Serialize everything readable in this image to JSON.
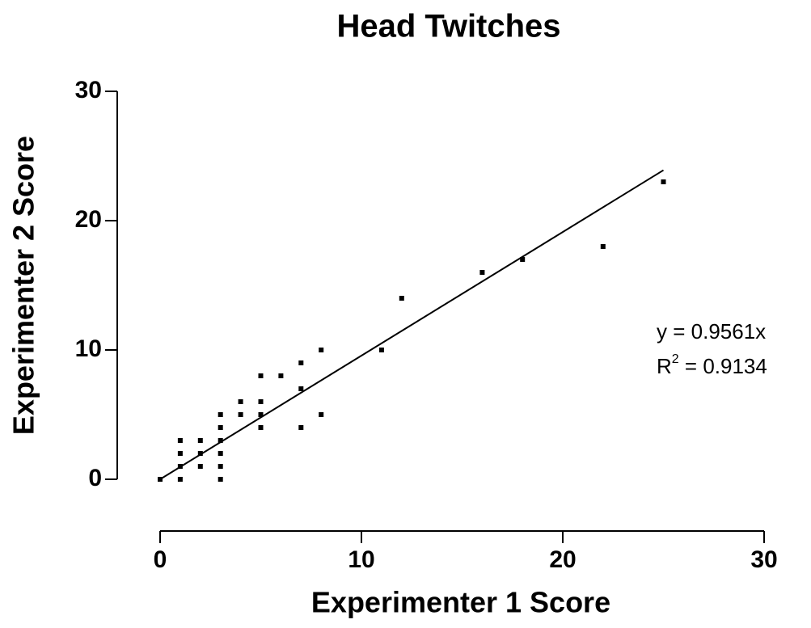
{
  "chart_data": {
    "type": "scatter",
    "title": "Head Twitches",
    "x_label": "Experimenter 1 Score",
    "y_label": "Experimenter 2 Score",
    "color": "#000000",
    "x": [
      0,
      1,
      1,
      1,
      1,
      2,
      2,
      2,
      3,
      3,
      3,
      3,
      3,
      3,
      4,
      4,
      5,
      5,
      5,
      5,
      6,
      7,
      7,
      7,
      8,
      8,
      11,
      12,
      16,
      18,
      22,
      25
    ],
    "y": [
      0,
      0,
      1,
      2,
      3,
      1,
      2,
      3,
      0,
      1,
      2,
      3,
      4,
      5,
      5,
      6,
      4,
      5,
      6,
      8,
      8,
      4,
      7,
      9,
      5,
      10,
      10,
      14,
      16,
      17,
      18,
      23
    ],
    "xlim": [
      0,
      30
    ],
    "ylim": [
      0,
      30
    ],
    "xticks": [
      0,
      10,
      20,
      30
    ],
    "yticks": [
      0,
      10,
      20,
      30
    ],
    "trendline": {
      "slope": 0.9561,
      "x": [
        0,
        25
      ]
    },
    "equation": "y = 0.9561x",
    "r_squared": {
      "base": "R",
      "sup": "2",
      "text": " = 0.9134"
    }
  }
}
